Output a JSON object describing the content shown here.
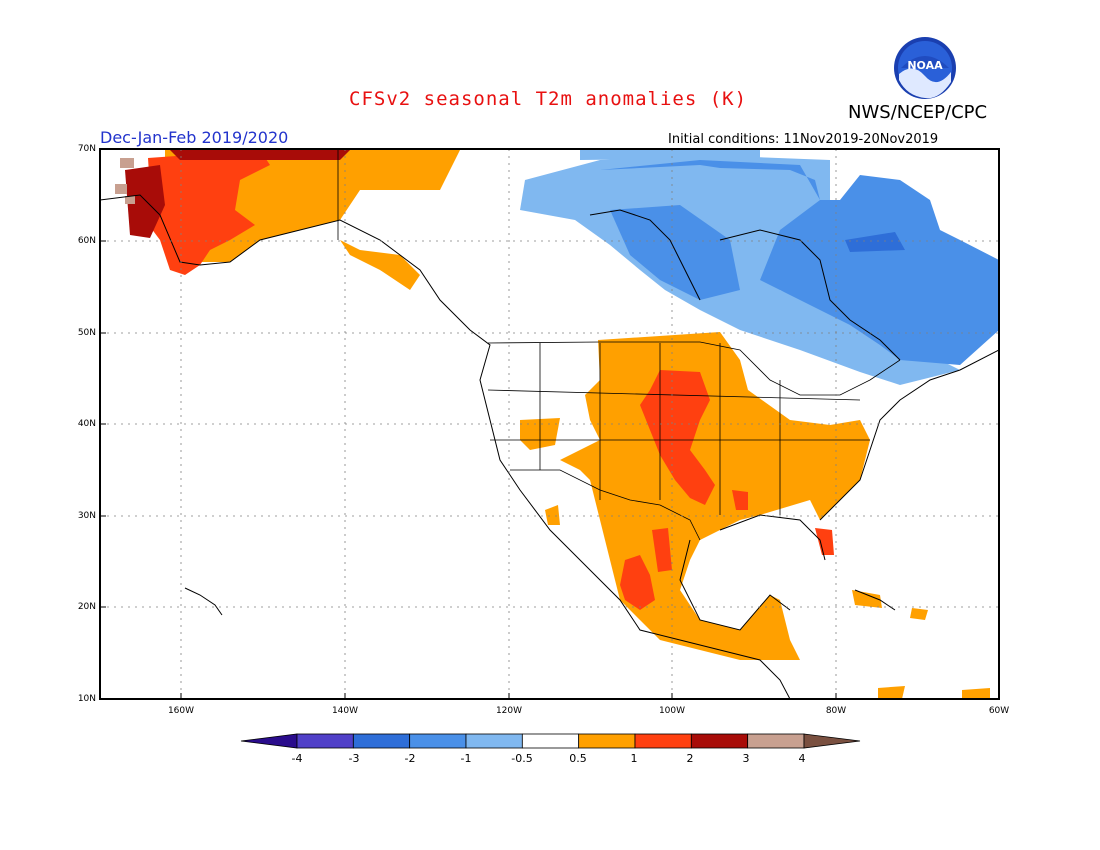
{
  "header": {
    "title": "CFSv2 seasonal T2m anomalies (K)",
    "org": "NWS/NCEP/CPC",
    "season": "Dec-Jan-Feb 2019/2020",
    "init": "Initial conditions: 11Nov2019-20Nov2019",
    "logo_text": "NOAA"
  },
  "map": {
    "lat_labels": [
      "70N",
      "60N",
      "50N",
      "40N",
      "30N",
      "20N",
      "10N"
    ],
    "lon_labels": [
      "160W",
      "140W",
      "120W",
      "100W",
      "80W",
      "60W"
    ]
  },
  "legend": {
    "labels": [
      "-4",
      "-3",
      "-2",
      "-1",
      "-0.5",
      "0.5",
      "1",
      "2",
      "3",
      "4"
    ],
    "colors": [
      "#2a0c8c",
      "#5040c8",
      "#2e6ed8",
      "#4a90e8",
      "#80b8f0",
      "#ffffff",
      "#ffa000",
      "#ff4010",
      "#a80c08",
      "#c8a090",
      "#7a5040"
    ]
  },
  "colors": {
    "title": "#e81010",
    "season": "#2233cc",
    "cold_light": "#80b8f0",
    "cold_medium": "#4a90e8",
    "cold_strong": "#2e6ed8",
    "warm_light": "#ffa000",
    "warm_medium": "#ff4010",
    "warm_strong": "#a80c08",
    "warm_extreme": "#c8a090"
  }
}
